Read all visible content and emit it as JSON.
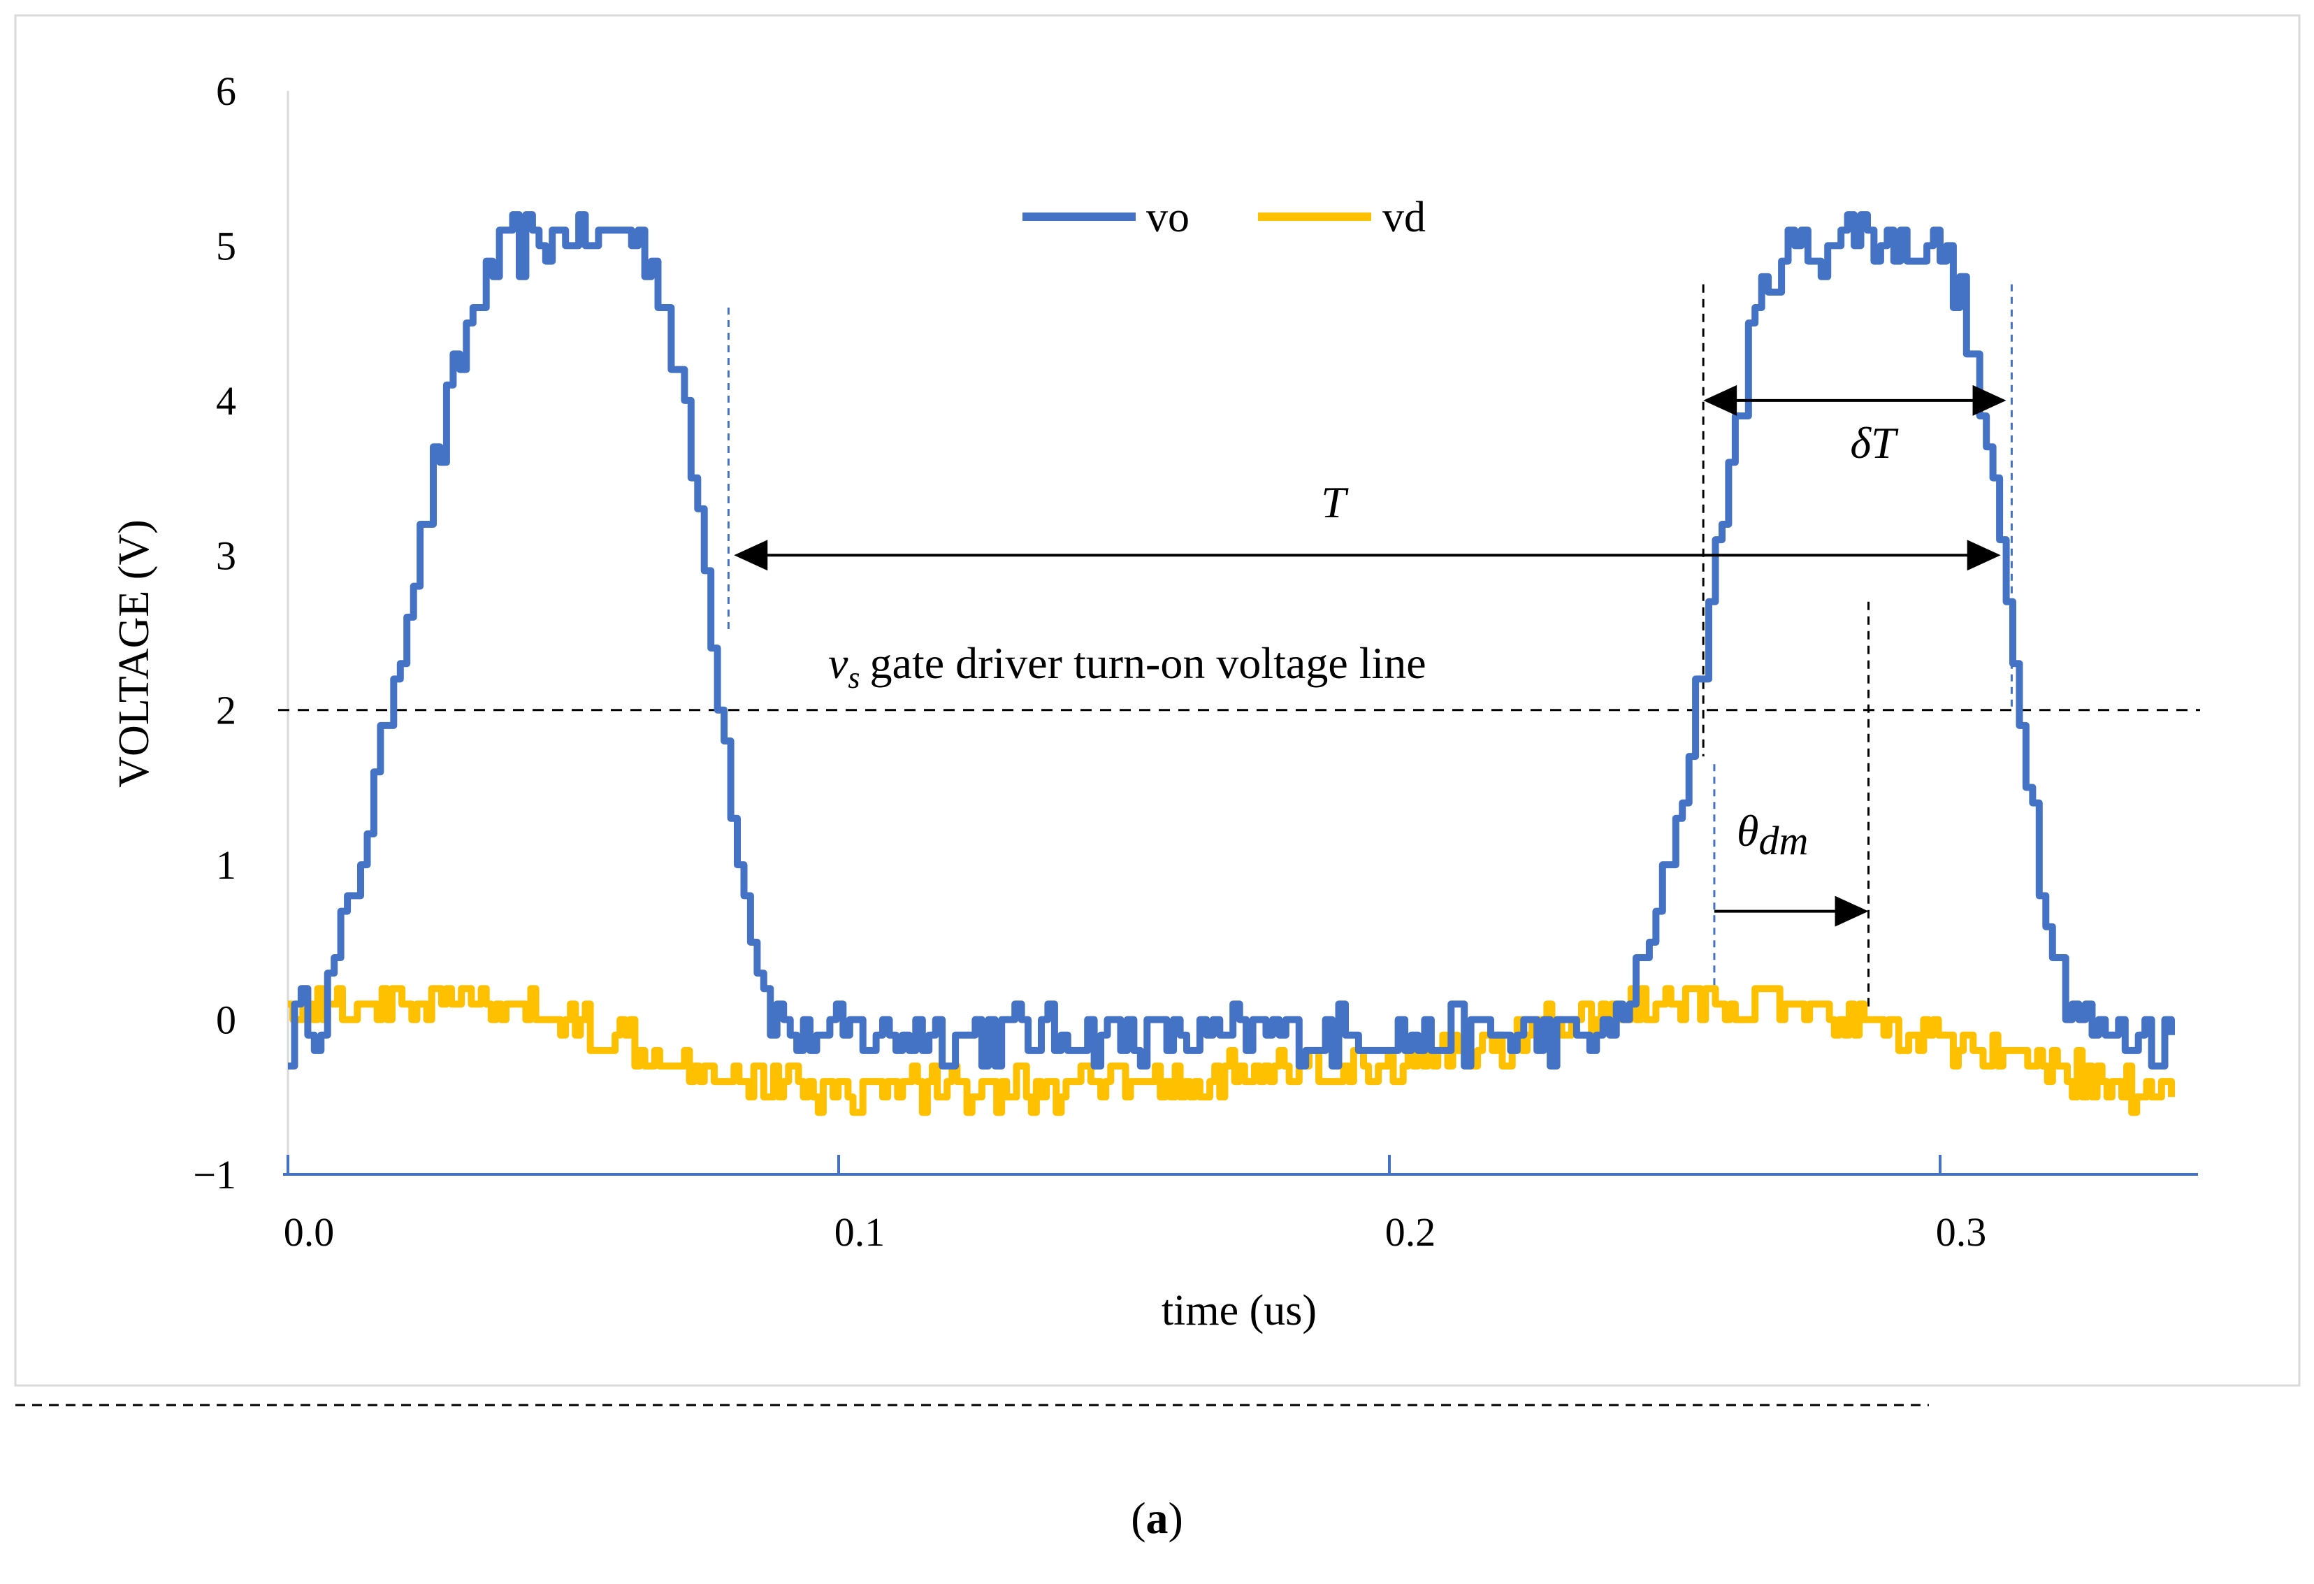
{
  "chart_data": {
    "type": "line",
    "title": "",
    "xlabel": "time (us)",
    "ylabel": "VOLTAGE (V)",
    "xlim": [
      0.0,
      0.345
    ],
    "ylim": [
      -1,
      6
    ],
    "x_ticks": [
      "0.0",
      "0.1",
      "0.2",
      "0.3"
    ],
    "x_tick_values": [
      0.0,
      0.1,
      0.2,
      0.3
    ],
    "y_ticks": [
      "−1",
      "0",
      "1",
      "2",
      "3",
      "4",
      "5",
      "6"
    ],
    "y_tick_values": [
      -1,
      0,
      1,
      2,
      3,
      4,
      5,
      6
    ],
    "grid": false,
    "legend": {
      "position": "top-center",
      "entries": [
        "vo",
        "vd"
      ]
    },
    "series": [
      {
        "name": "vo",
        "color": "#4472C4",
        "x": [
          0.0,
          0.002,
          0.005,
          0.008,
          0.012,
          0.016,
          0.02,
          0.024,
          0.028,
          0.032,
          0.036,
          0.04,
          0.045,
          0.05,
          0.055,
          0.06,
          0.064,
          0.067,
          0.07,
          0.073,
          0.076,
          0.079,
          0.082,
          0.085,
          0.088,
          0.092,
          0.1,
          0.12,
          0.15,
          0.18,
          0.2,
          0.22,
          0.24,
          0.244,
          0.248,
          0.251,
          0.254,
          0.257,
          0.26,
          0.263,
          0.266,
          0.27,
          0.275,
          0.28,
          0.285,
          0.29,
          0.295,
          0.3,
          0.303,
          0.306,
          0.309,
          0.312,
          0.315,
          0.318,
          0.321,
          0.325,
          0.33,
          0.335,
          0.34,
          0.342
        ],
        "y": [
          -0.2,
          0.1,
          0.0,
          0.3,
          0.9,
          1.6,
          2.4,
          3.1,
          3.8,
          4.4,
          4.8,
          5.0,
          5.0,
          5.1,
          5.0,
          5.1,
          5.0,
          4.8,
          4.3,
          3.6,
          2.8,
          1.8,
          1.0,
          0.4,
          0.0,
          -0.1,
          -0.1,
          -0.1,
          -0.1,
          -0.1,
          -0.1,
          -0.1,
          -0.1,
          0.2,
          0.6,
          1.1,
          1.7,
          2.4,
          3.2,
          3.9,
          4.5,
          4.9,
          5.0,
          5.0,
          5.1,
          5.0,
          5.0,
          5.0,
          4.7,
          4.2,
          3.5,
          2.7,
          1.8,
          1.0,
          0.4,
          0.0,
          -0.1,
          -0.1,
          -0.1,
          -0.1
        ]
      },
      {
        "name": "vd",
        "color": "#FFC000",
        "x": [
          0.0,
          0.02,
          0.04,
          0.06,
          0.08,
          0.1,
          0.12,
          0.14,
          0.16,
          0.18,
          0.2,
          0.22,
          0.24,
          0.26,
          0.28,
          0.3,
          0.32,
          0.34,
          0.342
        ],
        "y": [
          0.1,
          0.12,
          0.08,
          -0.1,
          -0.35,
          -0.45,
          -0.42,
          -0.45,
          -0.4,
          -0.35,
          -0.3,
          -0.15,
          0.05,
          0.12,
          0.0,
          -0.15,
          -0.35,
          -0.45,
          -0.45
        ]
      }
    ],
    "annotations": {
      "gate_line_label": "gate driver turn-on voltage line",
      "gate_line_symbol": "v",
      "gate_line_subscript": "s",
      "gate_line_value": 2,
      "T_label": "T",
      "deltaT_label": "δT",
      "theta_label": "θ",
      "theta_subscript": "dm",
      "T_start": 0.081,
      "T_end": 0.311,
      "T_level": 3.0,
      "T_marker_left": 0.08,
      "T_marker_right": 0.313,
      "deltaT_start": 0.257,
      "deltaT_end": 0.312,
      "deltaT_level": 4.0,
      "deltaT_marker_left": 0.257,
      "theta_start": 0.259,
      "theta_end": 0.287,
      "theta_level": 0.7,
      "theta_marker_left": 0.259,
      "theta_marker_right": 0.287
    }
  },
  "caption": {
    "open": "(",
    "label": "a",
    "close": ")"
  }
}
